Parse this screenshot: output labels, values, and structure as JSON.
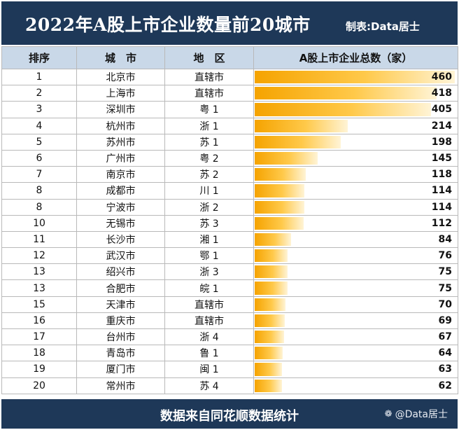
{
  "header": {
    "title": "2022年A股上市企业数量前20城市",
    "credit": "制表:Data居士"
  },
  "table": {
    "columns": [
      "排序",
      "城　市",
      "地　区",
      "A股上市企业总数（家）"
    ]
  },
  "chart_data": {
    "type": "table",
    "title": "2022年A股上市企业数量前20城市",
    "columns": [
      "排序",
      "城　市",
      "地　区",
      "A股上市企业总数（家）"
    ],
    "max_value": 460,
    "rows": [
      {
        "rank": "1",
        "city": "北京市",
        "region": "直辖市",
        "value": 460
      },
      {
        "rank": "2",
        "city": "上海市",
        "region": "直辖市",
        "value": 418
      },
      {
        "rank": "3",
        "city": "深圳市",
        "region": "粤 1",
        "value": 405
      },
      {
        "rank": "4",
        "city": "杭州市",
        "region": "浙 1",
        "value": 214
      },
      {
        "rank": "5",
        "city": "苏州市",
        "region": "苏 1",
        "value": 198
      },
      {
        "rank": "6",
        "city": "广州市",
        "region": "粤 2",
        "value": 145
      },
      {
        "rank": "7",
        "city": "南京市",
        "region": "苏 2",
        "value": 118
      },
      {
        "rank": "8",
        "city": "成都市",
        "region": "川 1",
        "value": 114
      },
      {
        "rank": "8",
        "city": "宁波市",
        "region": "浙 2",
        "value": 114
      },
      {
        "rank": "10",
        "city": "无锡市",
        "region": "苏 3",
        "value": 112
      },
      {
        "rank": "11",
        "city": "长沙市",
        "region": "湘 1",
        "value": 84
      },
      {
        "rank": "12",
        "city": "武汉市",
        "region": "鄂 1",
        "value": 76
      },
      {
        "rank": "13",
        "city": "绍兴市",
        "region": "浙 3",
        "value": 75
      },
      {
        "rank": "13",
        "city": "合肥市",
        "region": "皖 1",
        "value": 75
      },
      {
        "rank": "15",
        "city": "天津市",
        "region": "直辖市",
        "value": 70
      },
      {
        "rank": "16",
        "city": "重庆市",
        "region": "直辖市",
        "value": 69
      },
      {
        "rank": "17",
        "city": "台州市",
        "region": "浙 4",
        "value": 67
      },
      {
        "rank": "18",
        "city": "青岛市",
        "region": "鲁 1",
        "value": 64
      },
      {
        "rank": "19",
        "city": "厦门市",
        "region": "闽 1",
        "value": 63
      },
      {
        "rank": "20",
        "city": "常州市",
        "region": "苏 4",
        "value": 62
      }
    ]
  },
  "footer": {
    "source": "数据来自同花顺数据统计",
    "watermark": "@Data居士",
    "watermark_icon": "platform-logo-icon"
  },
  "colors": {
    "header_bg": "#1e3858",
    "column_header_bg": "#c9d8e8",
    "bar_start": "#f5a300",
    "bar_end": "#fff4d6"
  }
}
